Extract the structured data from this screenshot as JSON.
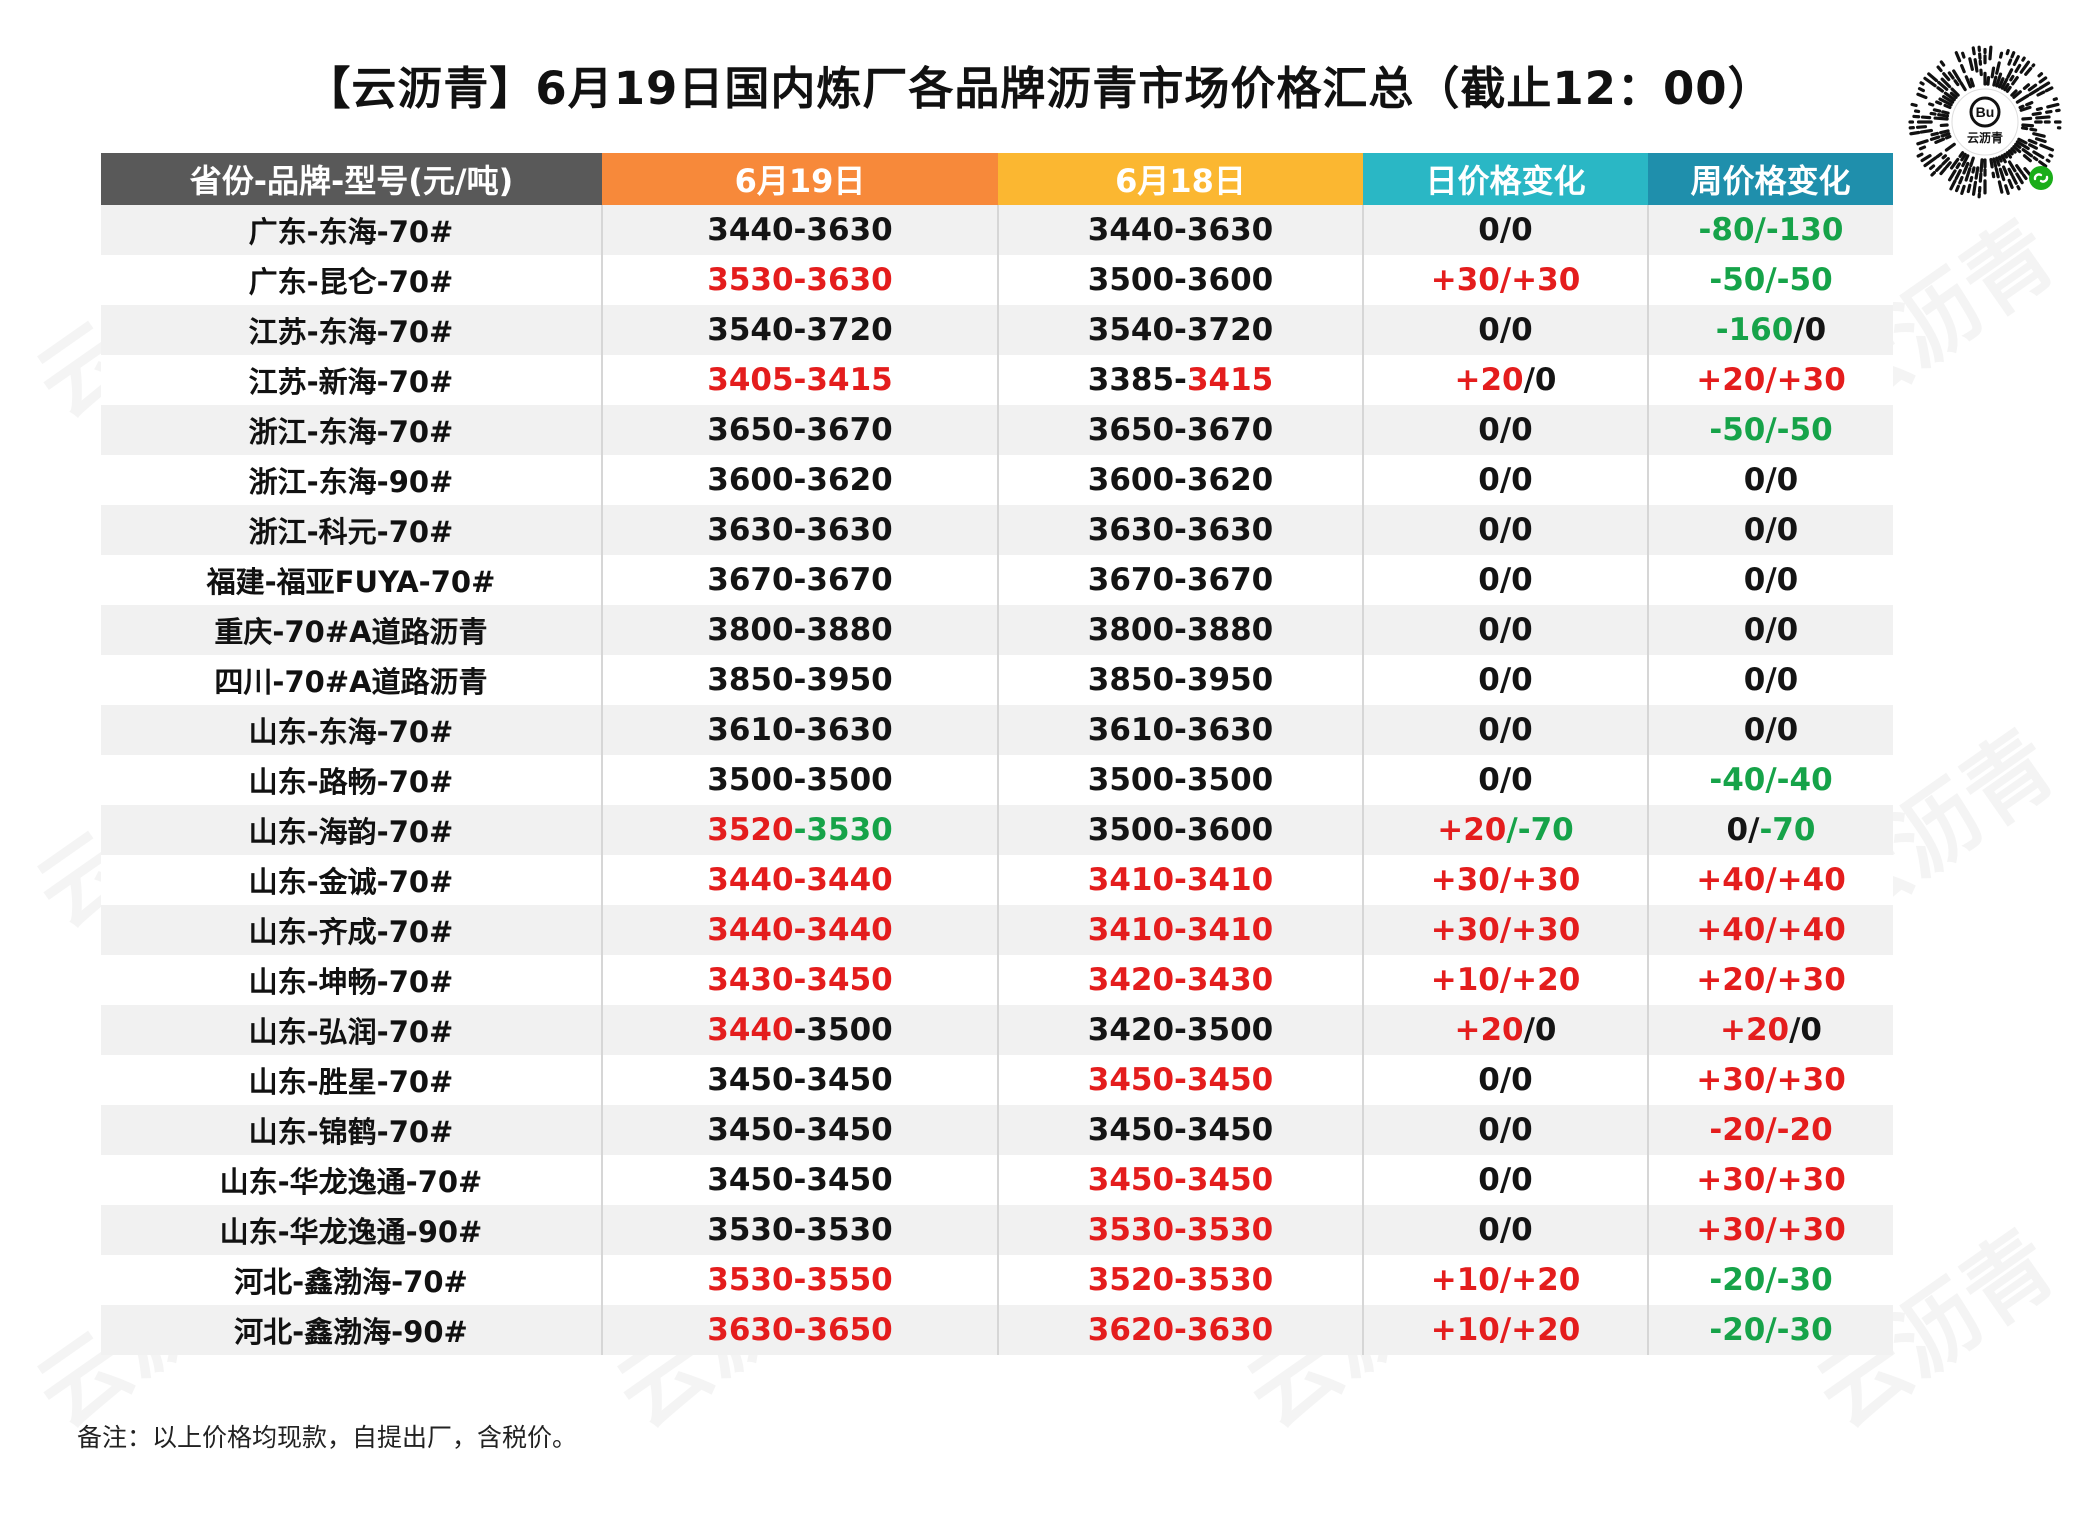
{
  "title": "【云沥青】6月19日国内炼厂各品牌沥青市场价格汇总（截止12：00）",
  "qr": {
    "icon": "mini-program-qr-code",
    "brand_text": "云沥青"
  },
  "watermark": "云沥青",
  "colors": {
    "header_name": "#595959",
    "header_0619": "#f7893a",
    "header_0618": "#fbb731",
    "header_day": "#2ab7c5",
    "header_week": "#1f8fac",
    "rise": "#e41d1d",
    "fall": "#16a349",
    "flat": "#141414"
  },
  "table": {
    "headers": [
      "省份-品牌-型号(元/吨)",
      "6月19日",
      "6月18日",
      "日价格变化",
      "周价格变化"
    ],
    "rows": [
      {
        "name": "广东-东海-70#",
        "d19": [
          [
            "3440-3630",
            "black"
          ]
        ],
        "d18": [
          [
            "3440-3630",
            "black"
          ]
        ],
        "day": [
          [
            "0/0",
            "black"
          ]
        ],
        "week": [
          [
            "-80/-130",
            "green"
          ]
        ]
      },
      {
        "name": "广东-昆仑-70#",
        "d19": [
          [
            "3530-3630",
            "red"
          ]
        ],
        "d18": [
          [
            "3500-3600",
            "black"
          ]
        ],
        "day": [
          [
            "+30/+30",
            "red"
          ]
        ],
        "week": [
          [
            "-50/-50",
            "green"
          ]
        ]
      },
      {
        "name": "江苏-东海-70#",
        "d19": [
          [
            "3540-3720",
            "black"
          ]
        ],
        "d18": [
          [
            "3540-3720",
            "black"
          ]
        ],
        "day": [
          [
            "0/0",
            "black"
          ]
        ],
        "week": [
          [
            "-160",
            "green"
          ],
          [
            "/0",
            "black"
          ]
        ]
      },
      {
        "name": "江苏-新海-70#",
        "d19": [
          [
            "3405-3415",
            "red"
          ]
        ],
        "d18": [
          [
            "3385-",
            "black"
          ],
          [
            "3415",
            "red"
          ]
        ],
        "day": [
          [
            "+20",
            "red"
          ],
          [
            "/0",
            "black"
          ]
        ],
        "week": [
          [
            "+20/+30",
            "red"
          ]
        ]
      },
      {
        "name": "浙江-东海-70#",
        "d19": [
          [
            "3650-3670",
            "black"
          ]
        ],
        "d18": [
          [
            "3650-3670",
            "black"
          ]
        ],
        "day": [
          [
            "0/0",
            "black"
          ]
        ],
        "week": [
          [
            "-50/-50",
            "green"
          ]
        ]
      },
      {
        "name": "浙江-东海-90#",
        "d19": [
          [
            "3600-3620",
            "black"
          ]
        ],
        "d18": [
          [
            "3600-3620",
            "black"
          ]
        ],
        "day": [
          [
            "0/0",
            "black"
          ]
        ],
        "week": [
          [
            "0/0",
            "black"
          ]
        ]
      },
      {
        "name": "浙江-科元-70#",
        "d19": [
          [
            "3630-3630",
            "black"
          ]
        ],
        "d18": [
          [
            "3630-3630",
            "black"
          ]
        ],
        "day": [
          [
            "0/0",
            "black"
          ]
        ],
        "week": [
          [
            "0/0",
            "black"
          ]
        ]
      },
      {
        "name": "福建-福亚FUYA-70#",
        "d19": [
          [
            "3670-3670",
            "black"
          ]
        ],
        "d18": [
          [
            "3670-3670",
            "black"
          ]
        ],
        "day": [
          [
            "0/0",
            "black"
          ]
        ],
        "week": [
          [
            "0/0",
            "black"
          ]
        ]
      },
      {
        "name": "重庆-70#A道路沥青",
        "d19": [
          [
            "3800-3880",
            "black"
          ]
        ],
        "d18": [
          [
            "3800-3880",
            "black"
          ]
        ],
        "day": [
          [
            "0/0",
            "black"
          ]
        ],
        "week": [
          [
            "0/0",
            "black"
          ]
        ]
      },
      {
        "name": "四川-70#A道路沥青",
        "d19": [
          [
            "3850-3950",
            "black"
          ]
        ],
        "d18": [
          [
            "3850-3950",
            "black"
          ]
        ],
        "day": [
          [
            "0/0",
            "black"
          ]
        ],
        "week": [
          [
            "0/0",
            "black"
          ]
        ]
      },
      {
        "name": "山东-东海-70#",
        "d19": [
          [
            "3610-3630",
            "black"
          ]
        ],
        "d18": [
          [
            "3610-3630",
            "black"
          ]
        ],
        "day": [
          [
            "0/0",
            "black"
          ]
        ],
        "week": [
          [
            "0/0",
            "black"
          ]
        ]
      },
      {
        "name": "山东-路畅-70#",
        "d19": [
          [
            "3500-3500",
            "black"
          ]
        ],
        "d18": [
          [
            "3500-3500",
            "black"
          ]
        ],
        "day": [
          [
            "0/0",
            "black"
          ]
        ],
        "week": [
          [
            "-40/-40",
            "green"
          ]
        ]
      },
      {
        "name": "山东-海韵-70#",
        "d19": [
          [
            "3520",
            "red"
          ],
          [
            "-3530",
            "green"
          ]
        ],
        "d18": [
          [
            "3500-3600",
            "black"
          ]
        ],
        "day": [
          [
            "+20",
            "red"
          ],
          [
            "/-70",
            "green"
          ]
        ],
        "week": [
          [
            "0/",
            "black"
          ],
          [
            "-70",
            "green"
          ]
        ]
      },
      {
        "name": "山东-金诚-70#",
        "d19": [
          [
            "3440-3440",
            "red"
          ]
        ],
        "d18": [
          [
            "3410-3410",
            "red"
          ]
        ],
        "day": [
          [
            "+30/+30",
            "red"
          ]
        ],
        "week": [
          [
            "+40/+40",
            "red"
          ]
        ]
      },
      {
        "name": "山东-齐成-70#",
        "d19": [
          [
            "3440-3440",
            "red"
          ]
        ],
        "d18": [
          [
            "3410-3410",
            "red"
          ]
        ],
        "day": [
          [
            "+30/+30",
            "red"
          ]
        ],
        "week": [
          [
            "+40/+40",
            "red"
          ]
        ]
      },
      {
        "name": "山东-坤畅-70#",
        "d19": [
          [
            "3430-3450",
            "red"
          ]
        ],
        "d18": [
          [
            "3420-3430",
            "red"
          ]
        ],
        "day": [
          [
            "+10/+20",
            "red"
          ]
        ],
        "week": [
          [
            "+20/+30",
            "red"
          ]
        ]
      },
      {
        "name": "山东-弘润-70#",
        "d19": [
          [
            "3440",
            "red"
          ],
          [
            "-3500",
            "black"
          ]
        ],
        "d18": [
          [
            "3420-3500",
            "black"
          ]
        ],
        "day": [
          [
            "+20",
            "red"
          ],
          [
            "/0",
            "black"
          ]
        ],
        "week": [
          [
            "+20",
            "red"
          ],
          [
            "/0",
            "black"
          ]
        ]
      },
      {
        "name": "山东-胜星-70#",
        "d19": [
          [
            "3450-3450",
            "black"
          ]
        ],
        "d18": [
          [
            "3450-3450",
            "red"
          ]
        ],
        "day": [
          [
            "0/0",
            "black"
          ]
        ],
        "week": [
          [
            "+30/+30",
            "red"
          ]
        ]
      },
      {
        "name": "山东-锦鹤-70#",
        "d19": [
          [
            "3450-3450",
            "black"
          ]
        ],
        "d18": [
          [
            "3450-3450",
            "black"
          ]
        ],
        "day": [
          [
            "0/0",
            "black"
          ]
        ],
        "week": [
          [
            "-20/-20",
            "red"
          ]
        ]
      },
      {
        "name": "山东-华龙逸通-70#",
        "d19": [
          [
            "3450-3450",
            "black"
          ]
        ],
        "d18": [
          [
            "3450-3450",
            "red"
          ]
        ],
        "day": [
          [
            "0/0",
            "black"
          ]
        ],
        "week": [
          [
            "+30/+30",
            "red"
          ]
        ]
      },
      {
        "name": "山东-华龙逸通-90#",
        "d19": [
          [
            "3530-3530",
            "black"
          ]
        ],
        "d18": [
          [
            "3530-3530",
            "red"
          ]
        ],
        "day": [
          [
            "0/0",
            "black"
          ]
        ],
        "week": [
          [
            "+30/+30",
            "red"
          ]
        ]
      },
      {
        "name": "河北-鑫渤海-70#",
        "d19": [
          [
            "3530-3550",
            "red"
          ]
        ],
        "d18": [
          [
            "3520-3530",
            "red"
          ]
        ],
        "day": [
          [
            "+10/+20",
            "red"
          ]
        ],
        "week": [
          [
            "-20/-30",
            "green"
          ]
        ]
      },
      {
        "name": "河北-鑫渤海-90#",
        "d19": [
          [
            "3630-3650",
            "red"
          ]
        ],
        "d18": [
          [
            "3620-3630",
            "red"
          ]
        ],
        "day": [
          [
            "+10/+20",
            "red"
          ]
        ],
        "week": [
          [
            "-20/-30",
            "green"
          ]
        ]
      }
    ]
  },
  "note": "备注：以上价格均现款，自提出厂，含税价。"
}
